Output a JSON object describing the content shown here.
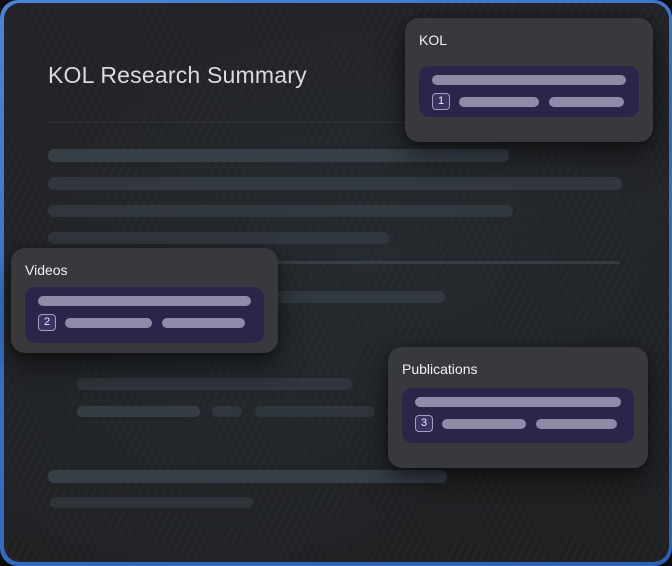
{
  "page": {
    "title": "KOL Research Summary"
  },
  "colors": {
    "backdrop_blue": "#3a70c6",
    "panel_bg": "#212326",
    "card_bg": "#38393c",
    "highlight_panel_bg": "#2b2649",
    "highlight_bar": "#8f8ba9",
    "skeleton_bar": "#3a424b",
    "title_text": "#d9dbdf"
  },
  "cards": {
    "kol": {
      "label": "KOL",
      "step": "1"
    },
    "videos": {
      "label": "Videos",
      "step": "2"
    },
    "publications": {
      "label": "Publications",
      "step": "3"
    }
  }
}
